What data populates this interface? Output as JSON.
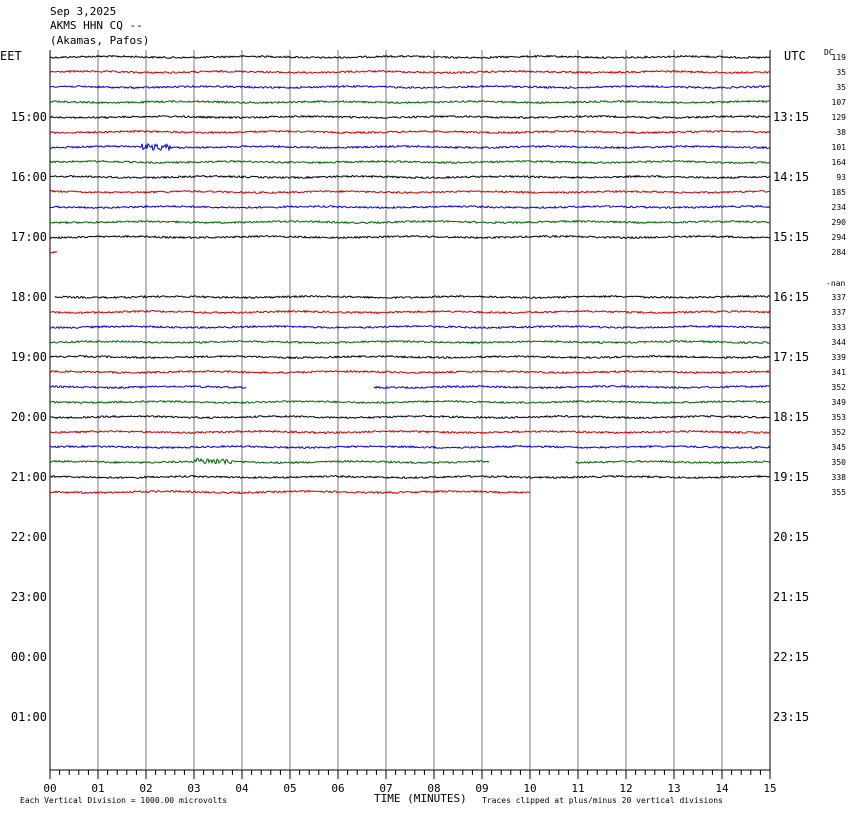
{
  "header": {
    "date": "Sep 3,2025",
    "station": "AKMS HHN CQ --",
    "location": "(Akamas, Pafos)"
  },
  "left_timezone": "EET",
  "right_timezone": "UTC",
  "dc_label": "DC",
  "nan_label": "-nan",
  "footer": {
    "scale_note": "Each Vertical Division = 1000.00 microvolts",
    "xlabel": "TIME (MINUTES)",
    "clip_note": "Traces clipped at plus/minus 20 vertical divisions"
  },
  "colors": [
    "#000000",
    "#cc0000",
    "#0000cc",
    "#006400"
  ],
  "chart_data": {
    "type": "line",
    "xlabel": "TIME (MINUTES)",
    "xlim": [
      0,
      15
    ],
    "x_ticks": [
      "00",
      "01",
      "02",
      "03",
      "04",
      "05",
      "06",
      "07",
      "08",
      "09",
      "10",
      "11",
      "12",
      "13",
      "14",
      "15"
    ],
    "left_hour_labels": [
      "15:00",
      "16:00",
      "17:00",
      "18:00",
      "19:00",
      "20:00",
      "21:00",
      "22:00",
      "23:00",
      "00:00",
      "01:00"
    ],
    "right_hour_labels": [
      "13:15",
      "14:15",
      "15:15",
      "16:15",
      "17:15",
      "18:15",
      "19:15",
      "20:15",
      "21:15",
      "22:15",
      "23:15"
    ],
    "dc_offsets": [
      "119",
      "35",
      "35",
      "107",
      "129",
      "38",
      "101",
      "164",
      "93",
      "185",
      "234",
      "290",
      "294",
      "284",
      "",
      "",
      "337",
      "337",
      "333",
      "344",
      "339",
      "341",
      "352",
      "349",
      "353",
      "352",
      "345",
      "350",
      "338",
      "355"
    ],
    "traces": [
      {
        "row": 0,
        "segments": [
          [
            0,
            15
          ]
        ]
      },
      {
        "row": 1,
        "segments": [
          [
            0,
            15
          ]
        ]
      },
      {
        "row": 2,
        "segments": [
          [
            0,
            15
          ]
        ]
      },
      {
        "row": 3,
        "segments": [
          [
            0,
            15
          ]
        ]
      },
      {
        "row": 4,
        "segments": [
          [
            0,
            15
          ]
        ]
      },
      {
        "row": 5,
        "segments": [
          [
            0,
            15
          ]
        ]
      },
      {
        "row": 6,
        "segments": [
          [
            0,
            15
          ]
        ],
        "event": [
          1.9,
          2.5
        ]
      },
      {
        "row": 7,
        "segments": [
          [
            0,
            15
          ]
        ]
      },
      {
        "row": 8,
        "segments": [
          [
            0,
            15
          ]
        ]
      },
      {
        "row": 9,
        "segments": [
          [
            0,
            15
          ]
        ]
      },
      {
        "row": 10,
        "segments": [
          [
            0,
            15
          ]
        ]
      },
      {
        "row": 11,
        "segments": [
          [
            0,
            15
          ]
        ]
      },
      {
        "row": 12,
        "segments": [
          [
            0,
            15
          ]
        ]
      },
      {
        "row": 13,
        "segments": [
          [
            0,
            0.15
          ]
        ]
      },
      {
        "row": 16,
        "segments": [
          [
            0.1,
            15
          ]
        ]
      },
      {
        "row": 17,
        "segments": [
          [
            0,
            15
          ]
        ]
      },
      {
        "row": 18,
        "segments": [
          [
            0,
            15
          ]
        ]
      },
      {
        "row": 19,
        "segments": [
          [
            0,
            15
          ]
        ]
      },
      {
        "row": 20,
        "segments": [
          [
            0,
            15
          ]
        ]
      },
      {
        "row": 21,
        "segments": [
          [
            0,
            15
          ]
        ]
      },
      {
        "row": 22,
        "segments": [
          [
            0,
            4.1
          ],
          [
            6.75,
            15
          ]
        ]
      },
      {
        "row": 23,
        "segments": [
          [
            0,
            15
          ]
        ]
      },
      {
        "row": 24,
        "segments": [
          [
            0,
            15
          ]
        ]
      },
      {
        "row": 25,
        "segments": [
          [
            0,
            15
          ]
        ]
      },
      {
        "row": 26,
        "segments": [
          [
            0,
            15
          ]
        ]
      },
      {
        "row": 27,
        "segments": [
          [
            0,
            9.15
          ],
          [
            10.95,
            15
          ]
        ],
        "event": [
          3.0,
          3.8
        ]
      },
      {
        "row": 28,
        "segments": [
          [
            0,
            15
          ]
        ]
      },
      {
        "row": 29,
        "segments": [
          [
            0,
            10.0
          ]
        ]
      }
    ]
  }
}
